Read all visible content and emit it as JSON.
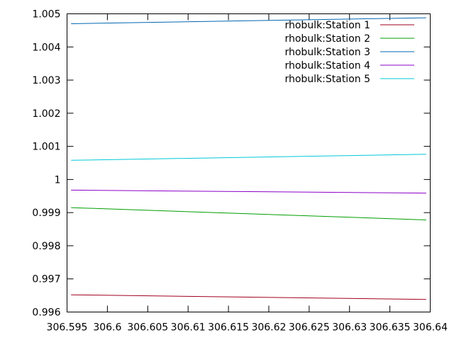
{
  "chart_data": {
    "type": "line",
    "title": "",
    "xlabel": "",
    "ylabel": "",
    "xlim": [
      306.595,
      306.64
    ],
    "ylim": [
      0.996,
      1.005
    ],
    "xticks": [
      "306.595",
      "306.6",
      "306.605",
      "306.61",
      "306.615",
      "306.62",
      "306.625",
      "306.63",
      "306.635",
      "306.64"
    ],
    "yticks": [
      "0.996",
      "0.997",
      "0.998",
      "0.999",
      "1",
      "1.001",
      "1.002",
      "1.003",
      "1.004",
      "1.005"
    ],
    "grid": false,
    "legend_position": "top-right",
    "series": [
      {
        "name": "rhobulk:Station 1",
        "color": "#a0001e",
        "x": [
          306.5955,
          306.6395
        ],
        "y": [
          0.99652,
          0.99638
        ]
      },
      {
        "name": "rhobulk:Station 2",
        "color": "#009e00",
        "x": [
          306.5955,
          306.6395
        ],
        "y": [
          0.99915,
          0.99878
        ]
      },
      {
        "name": "rhobulk:Station 3",
        "color": "#0066b2",
        "x": [
          306.5955,
          306.6395
        ],
        "y": [
          1.0047,
          1.00488
        ]
      },
      {
        "name": "rhobulk:Station 4",
        "color": "#8b00c8",
        "x": [
          306.5955,
          306.6395
        ],
        "y": [
          0.99968,
          0.99959
        ]
      },
      {
        "name": "rhobulk:Station 5",
        "color": "#00c8d8",
        "x": [
          306.5955,
          306.6395
        ],
        "y": [
          1.00058,
          1.00076
        ]
      }
    ]
  }
}
